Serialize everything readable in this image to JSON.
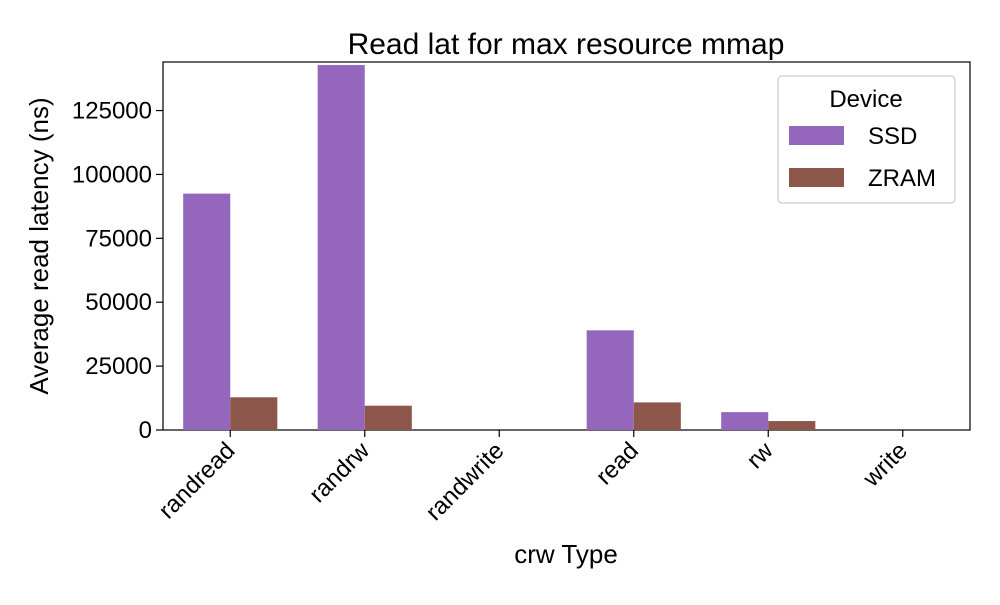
{
  "chart_data": {
    "type": "bar",
    "title": "Read lat for max resource mmap",
    "xlabel": "crw Type",
    "ylabel": "Average read latency (ns)",
    "categories": [
      "randread",
      "randrw",
      "randwrite",
      "read",
      "rw",
      "write"
    ],
    "series": [
      {
        "name": "SSD",
        "color": "#9467bd",
        "values": [
          92500,
          142800,
          0,
          39000,
          7000,
          0
        ]
      },
      {
        "name": "ZRAM",
        "color": "#8c564b",
        "values": [
          12800,
          9500,
          0,
          10800,
          3500,
          0
        ]
      }
    ],
    "ylim": [
      0,
      144000
    ],
    "yticks": [
      0,
      25000,
      50000,
      75000,
      100000,
      125000
    ],
    "legend": {
      "title": "Device",
      "placement": "top-right"
    },
    "grid": false
  }
}
